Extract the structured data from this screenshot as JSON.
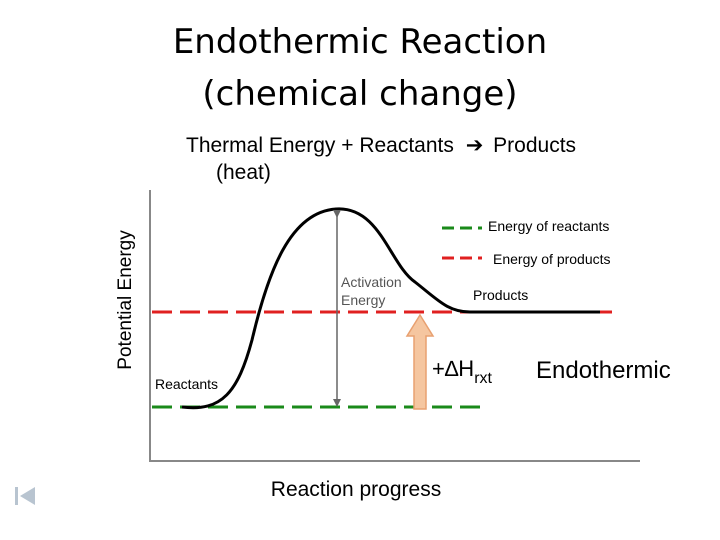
{
  "title": {
    "line1": "Endothermic Reaction",
    "line2": "(chemical change)"
  },
  "equation": {
    "text": "Thermal Energy  +  Reactants",
    "arrow": "➔",
    "products": "Products",
    "heat_note": "(heat)"
  },
  "diagram": {
    "y_axis_label": "Potential Energy",
    "x_axis_label": "Reaction progress",
    "legend": [
      {
        "label": "Energy of reactants",
        "color": "#1a8a1a"
      },
      {
        "label": "Energy of products",
        "color": "#e02020"
      }
    ],
    "labels": {
      "activation_line1": "Activation",
      "activation_line2": "Energy",
      "products": "Products",
      "reactants": "Reactants",
      "delta_h_prefix": "+∆H",
      "delta_h_sub": "rxt",
      "endothermic": "Endothermic"
    },
    "colors": {
      "curve": "#000000",
      "reactant_line": "#1a8a1a",
      "product_line": "#e02020",
      "delta_arrow": "#f5c6a0",
      "delta_arrow_border": "#e8a070",
      "activation_label": "#555555"
    }
  },
  "navigation": {
    "first_slide_icon": "skip-to-start-icon"
  }
}
